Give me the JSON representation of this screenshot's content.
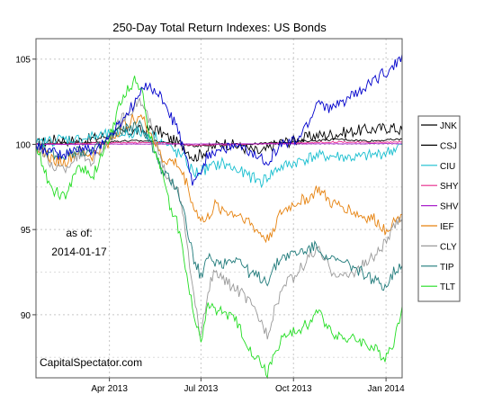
{
  "chart_data": {
    "type": "line",
    "title": "250-Day Total Return Indexes: US Bonds",
    "xlabel": "",
    "ylabel": "",
    "ylim": [
      86.3,
      106.2
    ],
    "xlim": [
      "2013-01-18",
      "2014-01-17"
    ],
    "grid": true,
    "legend_position": "right",
    "yticks": [
      90,
      95,
      100,
      105
    ],
    "xticks": [
      {
        "date": "2013-04-01",
        "label": "Apr 2013"
      },
      {
        "date": "2013-07-01",
        "label": "Jul 2013"
      },
      {
        "date": "2013-10-01",
        "label": "Oct 2013"
      },
      {
        "date": "2014-01-01",
        "label": "Jan 2014"
      }
    ],
    "annotations": {
      "as_of_label": "as of:",
      "as_of_date": "2014-01-17",
      "source": "CapitalSpectator.com"
    },
    "series": [
      {
        "name": "JNK",
        "color": "#000000",
        "points": [
          [
            "2013-01-18",
            100.0
          ],
          [
            "2013-02-08",
            100.3
          ],
          [
            "2013-03-01",
            100.2
          ],
          [
            "2013-03-22",
            100.4
          ],
          [
            "2013-04-12",
            100.7
          ],
          [
            "2013-05-03",
            100.8
          ],
          [
            "2013-05-17",
            100.9
          ],
          [
            "2013-06-01",
            100.3
          ],
          [
            "2013-06-14",
            99.9
          ],
          [
            "2013-06-24",
            99.2
          ],
          [
            "2013-07-08",
            99.7
          ],
          [
            "2013-07-22",
            100.1
          ],
          [
            "2013-08-12",
            99.8
          ],
          [
            "2013-08-30",
            99.5
          ],
          [
            "2013-09-16",
            100.1
          ],
          [
            "2013-10-01",
            100.2
          ],
          [
            "2013-10-21",
            100.5
          ],
          [
            "2013-11-11",
            100.6
          ],
          [
            "2013-12-02",
            100.8
          ],
          [
            "2013-12-23",
            100.9
          ],
          [
            "2014-01-06",
            101.0
          ],
          [
            "2014-01-17",
            100.8
          ]
        ]
      },
      {
        "name": "CSJ",
        "color": "#000000",
        "points": [
          [
            "2013-01-18",
            100.0
          ],
          [
            "2013-02-15",
            100.1
          ],
          [
            "2013-03-15",
            100.1
          ],
          [
            "2013-04-15",
            100.2
          ],
          [
            "2013-05-15",
            100.2
          ],
          [
            "2013-06-15",
            100.0
          ],
          [
            "2013-06-25",
            99.9
          ],
          [
            "2013-07-15",
            100.0
          ],
          [
            "2013-08-15",
            100.0
          ],
          [
            "2013-09-15",
            100.1
          ],
          [
            "2013-10-15",
            100.2
          ],
          [
            "2013-11-15",
            100.3
          ],
          [
            "2013-12-15",
            100.2
          ],
          [
            "2014-01-17",
            100.3
          ]
        ]
      },
      {
        "name": "CIU",
        "color": "#17BECF",
        "points": [
          [
            "2013-01-18",
            100.0
          ],
          [
            "2013-02-08",
            100.3
          ],
          [
            "2013-03-01",
            100.3
          ],
          [
            "2013-03-22",
            100.5
          ],
          [
            "2013-04-12",
            100.6
          ],
          [
            "2013-05-01",
            100.7
          ],
          [
            "2013-05-17",
            100.5
          ],
          [
            "2013-05-31",
            99.8
          ],
          [
            "2013-06-14",
            99.2
          ],
          [
            "2013-06-24",
            98.3
          ],
          [
            "2013-07-08",
            98.6
          ],
          [
            "2013-07-22",
            98.9
          ],
          [
            "2013-08-12",
            98.3
          ],
          [
            "2013-08-30",
            97.8
          ],
          [
            "2013-09-16",
            98.6
          ],
          [
            "2013-10-01",
            98.9
          ],
          [
            "2013-10-21",
            99.3
          ],
          [
            "2013-11-11",
            99.3
          ],
          [
            "2013-12-02",
            99.2
          ],
          [
            "2013-12-23",
            99.4
          ],
          [
            "2014-01-06",
            99.6
          ],
          [
            "2014-01-17",
            100.0
          ]
        ]
      },
      {
        "name": "SHY",
        "color": "#E7298A",
        "points": [
          [
            "2013-01-18",
            100.0
          ],
          [
            "2013-03-01",
            100.05
          ],
          [
            "2013-04-15",
            100.1
          ],
          [
            "2013-05-20",
            100.1
          ],
          [
            "2013-06-25",
            99.95
          ],
          [
            "2013-08-01",
            100.0
          ],
          [
            "2013-09-15",
            100.05
          ],
          [
            "2013-10-15",
            100.1
          ],
          [
            "2013-11-15",
            100.15
          ],
          [
            "2013-12-15",
            100.1
          ],
          [
            "2014-01-17",
            100.15
          ]
        ]
      },
      {
        "name": "SHV",
        "color": "#AA22CC",
        "points": [
          [
            "2013-01-18",
            100.0
          ],
          [
            "2013-03-01",
            100.0
          ],
          [
            "2013-05-01",
            100.02
          ],
          [
            "2013-07-01",
            100.02
          ],
          [
            "2013-09-01",
            100.03
          ],
          [
            "2013-11-01",
            100.03
          ],
          [
            "2014-01-17",
            100.04
          ]
        ]
      },
      {
        "name": "IEF",
        "color": "#E6820E",
        "points": [
          [
            "2013-01-18",
            100.0
          ],
          [
            "2013-02-01",
            99.2
          ],
          [
            "2013-02-15",
            98.9
          ],
          [
            "2013-03-01",
            99.6
          ],
          [
            "2013-03-15",
            99.3
          ],
          [
            "2013-04-01",
            100.2
          ],
          [
            "2013-04-15",
            101.1
          ],
          [
            "2013-05-01",
            101.7
          ],
          [
            "2013-05-10",
            100.9
          ],
          [
            "2013-05-24",
            99.1
          ],
          [
            "2013-06-07",
            98.9
          ],
          [
            "2013-06-18",
            97.6
          ],
          [
            "2013-06-24",
            96.2
          ],
          [
            "2013-07-05",
            95.4
          ],
          [
            "2013-07-15",
            96.4
          ],
          [
            "2013-07-29",
            96.0
          ],
          [
            "2013-08-12",
            95.8
          ],
          [
            "2013-08-26",
            94.9
          ],
          [
            "2013-09-05",
            94.4
          ],
          [
            "2013-09-19",
            96.0
          ],
          [
            "2013-10-04",
            96.6
          ],
          [
            "2013-10-18",
            96.9
          ],
          [
            "2013-10-25",
            97.4
          ],
          [
            "2013-11-08",
            96.5
          ],
          [
            "2013-11-22",
            96.3
          ],
          [
            "2013-12-06",
            95.8
          ],
          [
            "2013-12-20",
            95.6
          ],
          [
            "2013-12-31",
            95.0
          ],
          [
            "2014-01-10",
            95.5
          ],
          [
            "2014-01-17",
            95.9
          ]
        ]
      },
      {
        "name": "CLY",
        "color": "#999999",
        "points": [
          [
            "2013-01-18",
            100.0
          ],
          [
            "2013-02-01",
            98.8
          ],
          [
            "2013-02-15",
            98.5
          ],
          [
            "2013-03-01",
            99.4
          ],
          [
            "2013-03-15",
            99.0
          ],
          [
            "2013-04-01",
            100.3
          ],
          [
            "2013-04-15",
            101.6
          ],
          [
            "2013-05-01",
            102.6
          ],
          [
            "2013-05-10",
            101.5
          ],
          [
            "2013-05-24",
            98.6
          ],
          [
            "2013-06-07",
            97.6
          ],
          [
            "2013-06-14",
            95.5
          ],
          [
            "2013-06-24",
            91.0
          ],
          [
            "2013-07-01",
            88.5
          ],
          [
            "2013-07-08",
            91.5
          ],
          [
            "2013-07-15",
            92.5
          ],
          [
            "2013-07-29",
            91.8
          ],
          [
            "2013-08-12",
            91.2
          ],
          [
            "2013-08-26",
            90.0
          ],
          [
            "2013-09-05",
            88.9
          ],
          [
            "2013-09-19",
            91.5
          ],
          [
            "2013-10-04",
            92.4
          ],
          [
            "2013-10-18",
            93.5
          ],
          [
            "2013-10-25",
            93.8
          ],
          [
            "2013-11-08",
            92.6
          ],
          [
            "2013-11-22",
            92.2
          ],
          [
            "2013-12-06",
            92.8
          ],
          [
            "2013-12-20",
            93.4
          ],
          [
            "2013-12-31",
            94.2
          ],
          [
            "2014-01-10",
            95.2
          ],
          [
            "2014-01-17",
            95.6
          ]
        ]
      },
      {
        "name": "TIP",
        "color": "#1F7A7A",
        "points": [
          [
            "2013-01-18",
            100.0
          ],
          [
            "2013-02-01",
            99.5
          ],
          [
            "2013-02-15",
            99.3
          ],
          [
            "2013-03-01",
            99.7
          ],
          [
            "2013-03-15",
            99.5
          ],
          [
            "2013-04-01",
            100.4
          ],
          [
            "2013-04-15",
            100.9
          ],
          [
            "2013-05-01",
            101.1
          ],
          [
            "2013-05-10",
            100.4
          ],
          [
            "2013-05-24",
            98.3
          ],
          [
            "2013-06-07",
            97.5
          ],
          [
            "2013-06-14",
            96.0
          ],
          [
            "2013-06-24",
            93.2
          ],
          [
            "2013-07-01",
            92.3
          ],
          [
            "2013-07-08",
            93.3
          ],
          [
            "2013-07-22",
            93.0
          ],
          [
            "2013-08-05",
            93.4
          ],
          [
            "2013-08-19",
            92.4
          ],
          [
            "2013-09-05",
            92.0
          ],
          [
            "2013-09-19",
            93.4
          ],
          [
            "2013-10-04",
            93.6
          ],
          [
            "2013-10-18",
            93.9
          ],
          [
            "2013-10-25",
            94.0
          ],
          [
            "2013-11-08",
            93.2
          ],
          [
            "2013-11-22",
            93.0
          ],
          [
            "2013-12-06",
            92.6
          ],
          [
            "2013-12-20",
            92.0
          ],
          [
            "2013-12-31",
            91.7
          ],
          [
            "2014-01-10",
            92.6
          ],
          [
            "2014-01-17",
            92.9
          ]
        ]
      },
      {
        "name": "TLT",
        "color": "#22DD22",
        "points": [
          [
            "2013-01-18",
            100.0
          ],
          [
            "2013-02-01",
            97.5
          ],
          [
            "2013-02-15",
            96.8
          ],
          [
            "2013-03-01",
            98.8
          ],
          [
            "2013-03-15",
            98.0
          ],
          [
            "2013-04-01",
            100.5
          ],
          [
            "2013-04-12",
            102.5
          ],
          [
            "2013-04-26",
            103.8
          ],
          [
            "2013-05-03",
            103.2
          ],
          [
            "2013-05-10",
            101.0
          ],
          [
            "2013-05-17",
            99.5
          ],
          [
            "2013-05-31",
            96.5
          ],
          [
            "2013-06-07",
            95.5
          ],
          [
            "2013-06-14",
            93.5
          ],
          [
            "2013-06-24",
            89.8
          ],
          [
            "2013-07-01",
            88.6
          ],
          [
            "2013-07-08",
            90.5
          ],
          [
            "2013-07-22",
            90.2
          ],
          [
            "2013-08-05",
            89.6
          ],
          [
            "2013-08-19",
            88.0
          ],
          [
            "2013-09-05",
            86.6
          ],
          [
            "2013-09-19",
            88.6
          ],
          [
            "2013-10-04",
            89.0
          ],
          [
            "2013-10-18",
            89.6
          ],
          [
            "2013-10-25",
            90.2
          ],
          [
            "2013-11-08",
            89.0
          ],
          [
            "2013-11-22",
            88.6
          ],
          [
            "2013-12-06",
            88.5
          ],
          [
            "2013-12-20",
            88.0
          ],
          [
            "2013-12-31",
            87.5
          ],
          [
            "2014-01-10",
            88.6
          ],
          [
            "2014-01-17",
            90.5
          ]
        ]
      },
      {
        "name": "",
        "color": "#0000CC",
        "points": [
          [
            "2013-01-18",
            100.0
          ],
          [
            "2013-02-01",
            99.5
          ],
          [
            "2013-02-15",
            99.3
          ],
          [
            "2013-03-01",
            99.8
          ],
          [
            "2013-03-15",
            99.6
          ],
          [
            "2013-04-01",
            100.4
          ],
          [
            "2013-04-15",
            101.5
          ],
          [
            "2013-04-30",
            102.8
          ],
          [
            "2013-05-10",
            103.6
          ],
          [
            "2013-05-24",
            102.6
          ],
          [
            "2013-06-07",
            101.0
          ],
          [
            "2013-06-18",
            98.8
          ],
          [
            "2013-06-24",
            97.6
          ],
          [
            "2013-07-01",
            98.4
          ],
          [
            "2013-07-08",
            99.4
          ],
          [
            "2013-07-22",
            99.8
          ],
          [
            "2013-08-05",
            99.9
          ],
          [
            "2013-08-19",
            99.5
          ],
          [
            "2013-09-05",
            99.0
          ],
          [
            "2013-09-19",
            100.0
          ],
          [
            "2013-10-04",
            100.2
          ],
          [
            "2013-10-18",
            101.5
          ],
          [
            "2013-10-25",
            102.6
          ],
          [
            "2013-11-08",
            102.0
          ],
          [
            "2013-11-22",
            102.6
          ],
          [
            "2013-12-06",
            103.0
          ],
          [
            "2013-12-20",
            103.8
          ],
          [
            "2013-12-31",
            104.2
          ],
          [
            "2014-01-10",
            104.7
          ],
          [
            "2014-01-17",
            105.3
          ]
        ]
      }
    ]
  }
}
